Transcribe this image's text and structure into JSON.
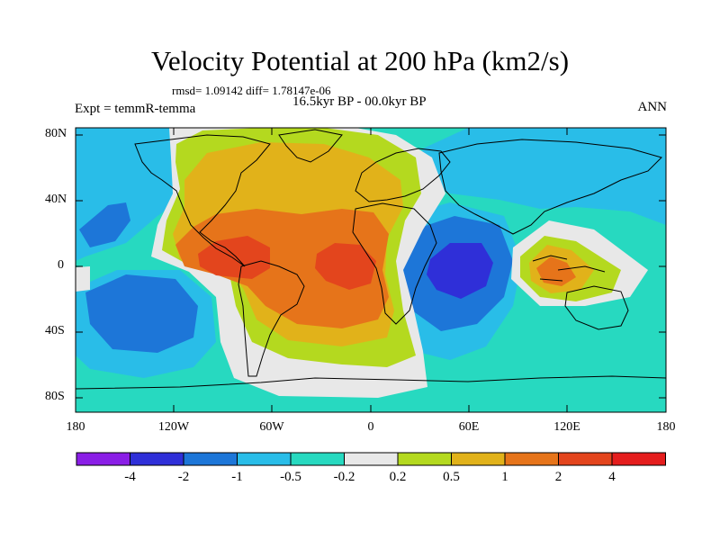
{
  "title": "Velocity Potential at 200 hPa (km2/s)",
  "stats": "rmsd= 1.09142 diff= 1.78147e-06",
  "period": "16.5kyr BP - 00.0kyr BP",
  "experiment": "Expt = temmR-temma",
  "season": "ANN",
  "axes": {
    "lat_ticks": [
      "80N",
      "40N",
      "0",
      "40S",
      "80S"
    ],
    "lon_ticks": [
      "180",
      "120W",
      "60W",
      "0",
      "60E",
      "120E",
      "180"
    ]
  },
  "colorbar": {
    "levels": [
      "-4",
      "-2",
      "-1",
      "-0.5",
      "-0.2",
      "0.2",
      "0.5",
      "1",
      "2",
      "4"
    ],
    "colors": [
      "#8a1ee6",
      "#2f2fd8",
      "#1d76d8",
      "#29bde8",
      "#27d9c0",
      "#e8e8e8",
      "#b4d91f",
      "#e1b21a",
      "#e6741a",
      "#e3451d",
      "#e41d1d"
    ]
  },
  "fill_colors": {
    "land_outline": "#000000",
    "neg2_to_neg4": "#2f2fd8",
    "neg1_to_neg2": "#1d76d8",
    "neg05_to_neg1": "#29bde8",
    "neg02_to_neg05": "#27d9c0",
    "near_zero": "#e8e8e8",
    "pos02_to_05": "#b4d91f",
    "pos05_to_1": "#e1b21a",
    "pos1_to_2": "#e6741a",
    "pos2_to_4": "#e3451d"
  }
}
